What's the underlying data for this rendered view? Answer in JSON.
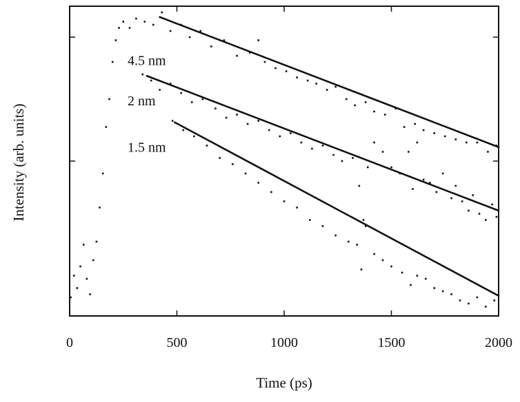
{
  "chart_data": {
    "type": "scatter",
    "title": "",
    "xlabel": "Time (ps)",
    "ylabel": "Intensity (arb. units)",
    "xlim": [
      0,
      2000
    ],
    "ylim": [
      0,
      10
    ],
    "x_ticks": [
      0,
      500,
      1000,
      1500,
      2000
    ],
    "x_tick_labels": [
      "0",
      "500",
      "1000",
      "1500",
      "2000"
    ],
    "y_tick_labels": [],
    "grid": false,
    "legend": "none",
    "colors": {
      "marks": "#111111"
    },
    "series": [
      {
        "name": "4.5 nm",
        "label_at": [
          270,
          8.1
        ],
        "fit": {
          "x": [
            420,
            2000
          ],
          "y": [
            9.65,
            5.45
          ]
        },
        "points": [
          [
            5,
            0.6
          ],
          [
            20,
            1.3
          ],
          [
            35,
            0.9
          ],
          [
            50,
            1.6
          ],
          [
            65,
            2.3
          ],
          [
            80,
            1.2
          ],
          [
            95,
            0.7
          ],
          [
            110,
            1.8
          ],
          [
            125,
            2.4
          ],
          [
            140,
            3.5
          ],
          [
            155,
            4.6
          ],
          [
            170,
            6.1
          ],
          [
            185,
            7.0
          ],
          [
            200,
            8.2
          ],
          [
            215,
            8.9
          ],
          [
            230,
            9.3
          ],
          [
            250,
            9.5
          ],
          [
            280,
            9.3
          ],
          [
            310,
            9.6
          ],
          [
            350,
            9.5
          ],
          [
            390,
            9.4
          ],
          [
            430,
            9.8
          ],
          [
            470,
            9.2
          ],
          [
            520,
            9.4
          ],
          [
            560,
            9.0
          ],
          [
            610,
            9.2
          ],
          [
            660,
            8.7
          ],
          [
            720,
            8.9
          ],
          [
            780,
            8.4
          ],
          [
            840,
            8.5
          ],
          [
            880,
            8.9
          ],
          [
            910,
            8.2
          ],
          [
            960,
            8.0
          ],
          [
            1010,
            7.9
          ],
          [
            1060,
            7.7
          ],
          [
            1110,
            7.6
          ],
          [
            1150,
            7.5
          ],
          [
            1200,
            7.3
          ],
          [
            1240,
            7.4
          ],
          [
            1290,
            7.0
          ],
          [
            1330,
            6.8
          ],
          [
            1380,
            6.9
          ],
          [
            1420,
            6.6
          ],
          [
            1470,
            6.5
          ],
          [
            1520,
            6.7
          ],
          [
            1560,
            6.1
          ],
          [
            1610,
            6.2
          ],
          [
            1650,
            6.0
          ],
          [
            1700,
            5.9
          ],
          [
            1750,
            5.8
          ],
          [
            1800,
            5.7
          ],
          [
            1850,
            5.6
          ],
          [
            1900,
            5.6
          ],
          [
            1950,
            5.3
          ],
          [
            1990,
            5.5
          ]
        ]
      },
      {
        "name": "2 nm",
        "label_at": [
          270,
          6.8
        ],
        "fit": {
          "x": [
            360,
            2000
          ],
          "y": [
            7.75,
            3.4
          ]
        },
        "points": [
          [
            340,
            7.8
          ],
          [
            380,
            7.6
          ],
          [
            420,
            7.3
          ],
          [
            470,
            7.5
          ],
          [
            520,
            7.2
          ],
          [
            570,
            6.9
          ],
          [
            620,
            7.0
          ],
          [
            680,
            6.7
          ],
          [
            730,
            6.4
          ],
          [
            780,
            6.5
          ],
          [
            830,
            6.2
          ],
          [
            880,
            6.3
          ],
          [
            930,
            6.0
          ],
          [
            980,
            5.8
          ],
          [
            1030,
            5.9
          ],
          [
            1080,
            5.6
          ],
          [
            1130,
            5.4
          ],
          [
            1180,
            5.5
          ],
          [
            1230,
            5.2
          ],
          [
            1270,
            5.0
          ],
          [
            1320,
            5.1
          ],
          [
            1350,
            4.2
          ],
          [
            1370,
            3.1
          ],
          [
            1390,
            4.8
          ],
          [
            1420,
            5.6
          ],
          [
            1460,
            5.3
          ],
          [
            1500,
            4.8
          ],
          [
            1540,
            4.6
          ],
          [
            1580,
            5.3
          ],
          [
            1600,
            4.1
          ],
          [
            1620,
            5.6
          ],
          [
            1650,
            4.4
          ],
          [
            1680,
            4.3
          ],
          [
            1710,
            4.0
          ],
          [
            1740,
            4.6
          ],
          [
            1780,
            3.8
          ],
          [
            1800,
            4.2
          ],
          [
            1830,
            3.7
          ],
          [
            1860,
            3.4
          ],
          [
            1880,
            3.9
          ],
          [
            1910,
            3.3
          ],
          [
            1940,
            3.1
          ],
          [
            1970,
            3.6
          ],
          [
            1990,
            3.2
          ]
        ]
      },
      {
        "name": "1.5 nm",
        "label_at": [
          270,
          5.3
        ],
        "fit": {
          "x": [
            490,
            2000
          ],
          "y": [
            6.25,
            0.65
          ]
        },
        "points": [
          [
            480,
            6.3
          ],
          [
            530,
            6.0
          ],
          [
            580,
            5.8
          ],
          [
            640,
            5.5
          ],
          [
            700,
            5.1
          ],
          [
            760,
            4.9
          ],
          [
            820,
            4.6
          ],
          [
            880,
            4.3
          ],
          [
            940,
            4.0
          ],
          [
            1000,
            3.7
          ],
          [
            1060,
            3.5
          ],
          [
            1120,
            3.1
          ],
          [
            1180,
            2.9
          ],
          [
            1240,
            2.6
          ],
          [
            1300,
            2.4
          ],
          [
            1340,
            2.3
          ],
          [
            1360,
            1.5
          ],
          [
            1380,
            2.9
          ],
          [
            1420,
            2.0
          ],
          [
            1460,
            1.8
          ],
          [
            1500,
            1.6
          ],
          [
            1550,
            1.4
          ],
          [
            1590,
            1.0
          ],
          [
            1620,
            1.3
          ],
          [
            1660,
            1.2
          ],
          [
            1700,
            0.9
          ],
          [
            1740,
            0.8
          ],
          [
            1780,
            0.7
          ],
          [
            1820,
            0.5
          ],
          [
            1860,
            0.4
          ],
          [
            1900,
            0.6
          ],
          [
            1940,
            0.3
          ],
          [
            1980,
            0.5
          ]
        ]
      }
    ]
  }
}
